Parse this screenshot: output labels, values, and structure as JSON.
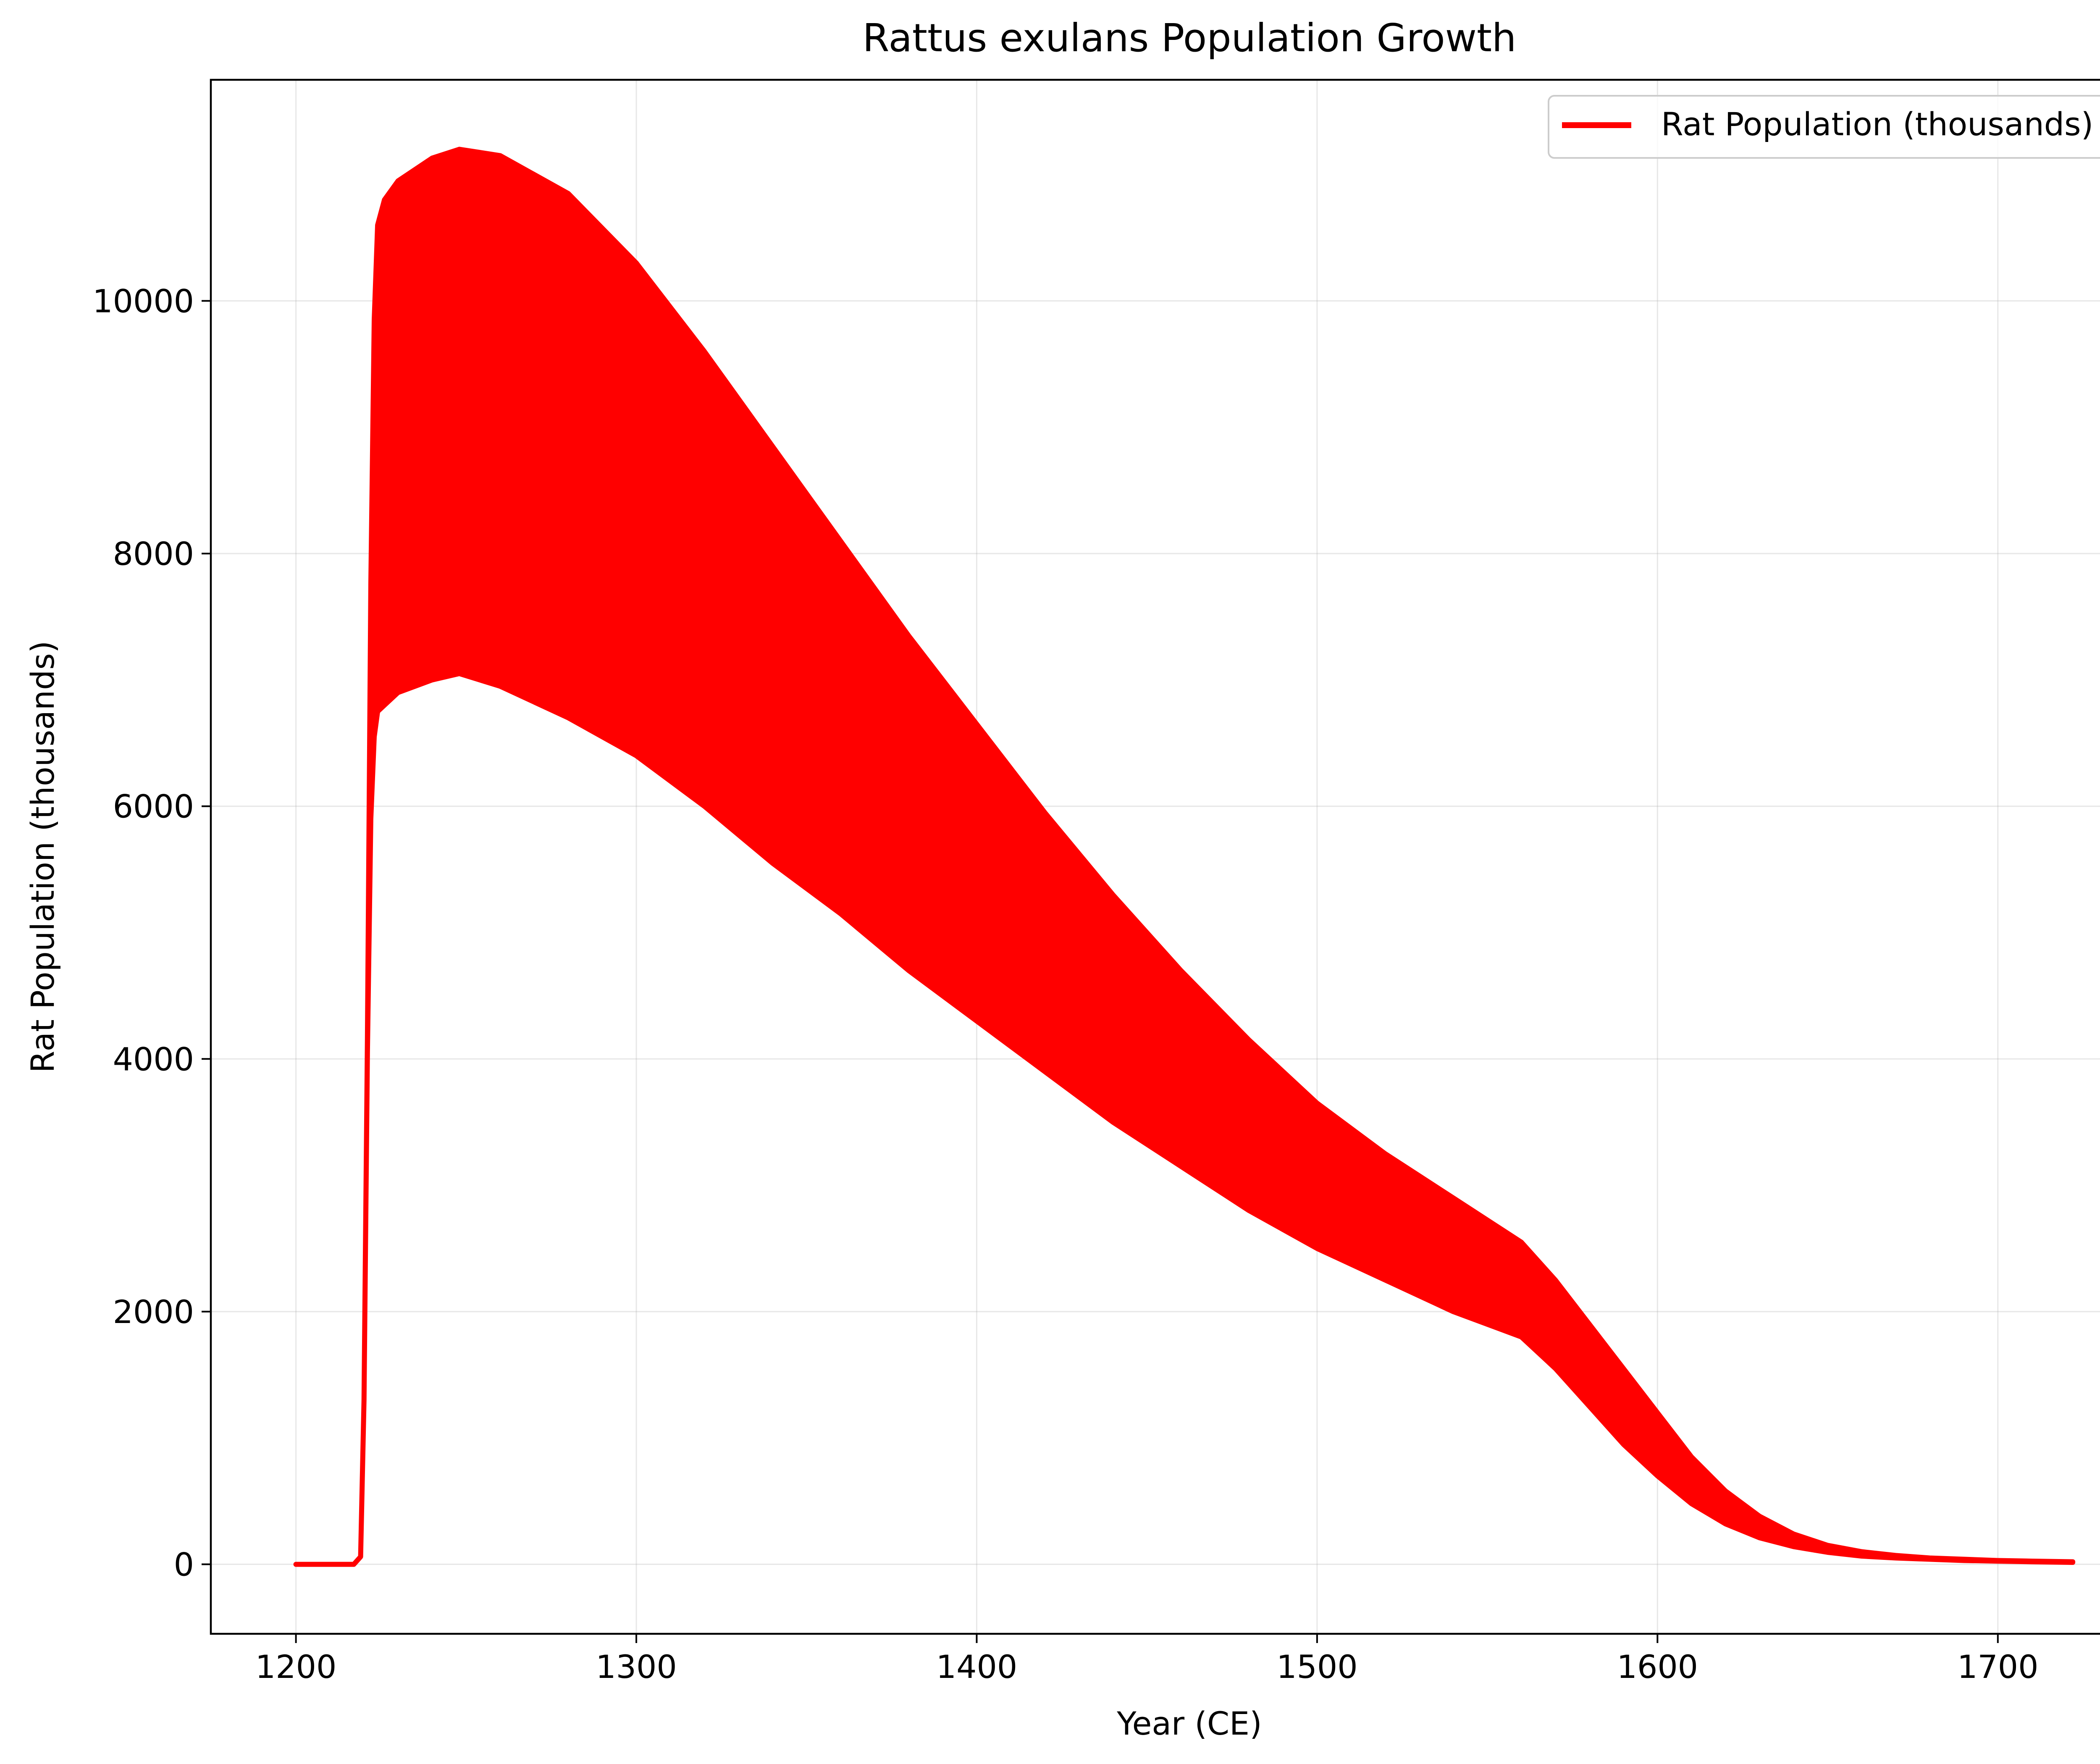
{
  "colors": {
    "series": "#ff0000",
    "grid": "#b0b0b0",
    "axis": "#000000",
    "background": "#ffffff"
  },
  "chart_data": {
    "type": "line",
    "title": "Rattus exulans Population Growth",
    "xlabel": "Year (CE)",
    "ylabel": "Rat Population (thousands)",
    "xlim": [
      1175,
      1750
    ],
    "ylim": [
      -550,
      11750
    ],
    "xticks": [
      1200,
      1300,
      1400,
      1500,
      1600,
      1700
    ],
    "yticks": [
      0,
      2000,
      4000,
      6000,
      8000,
      10000
    ],
    "grid": true,
    "legend": {
      "location": "upper right",
      "entries": [
        "Rat Population (thousands)"
      ]
    },
    "series": [
      {
        "name": "Rat Population (thousands)",
        "color": "#ff0000",
        "description_of_shape": "rapid oscillation between an upper and lower envelope",
        "upper_envelope": {
          "x": [
            1200,
            1217,
            1219,
            1220,
            1221,
            1222,
            1223,
            1224,
            1226,
            1230,
            1240,
            1248,
            1260,
            1280,
            1300,
            1320,
            1340,
            1360,
            1380,
            1400,
            1420,
            1440,
            1460,
            1480,
            1500,
            1520,
            1540,
            1560,
            1570,
            1580,
            1590,
            1600,
            1610,
            1620,
            1630,
            1640,
            1650,
            1660,
            1670,
            1680,
            1690,
            1700,
            1710,
            1722
          ],
          "y": [
            0,
            0,
            60,
            1300,
            4150,
            7750,
            9850,
            10600,
            10800,
            10950,
            11130,
            11200,
            11150,
            10850,
            10300,
            9600,
            8850,
            8100,
            7350,
            6650,
            5950,
            5300,
            4700,
            4150,
            3650,
            3250,
            2900,
            2550,
            2250,
            1900,
            1550,
            1200,
            850,
            580,
            380,
            240,
            150,
            100,
            70,
            50,
            40,
            30,
            25,
            20
          ]
        },
        "lower_envelope": {
          "x": [
            1200,
            1217,
            1219,
            1220,
            1221,
            1222,
            1223,
            1224,
            1226,
            1230,
            1240,
            1248,
            1260,
            1280,
            1300,
            1320,
            1340,
            1360,
            1380,
            1400,
            1420,
            1440,
            1460,
            1480,
            1500,
            1520,
            1540,
            1560,
            1570,
            1580,
            1590,
            1600,
            1610,
            1620,
            1630,
            1640,
            1650,
            1660,
            1670,
            1680,
            1690,
            1700,
            1710,
            1722
          ],
          "y": [
            0,
            0,
            60,
            1300,
            4050,
            5900,
            6550,
            6750,
            6800,
            6900,
            7000,
            7050,
            6950,
            6700,
            6400,
            6000,
            5550,
            5150,
            4700,
            4300,
            3900,
            3500,
            3150,
            2800,
            2500,
            2250,
            2000,
            1800,
            1550,
            1250,
            950,
            700,
            480,
            320,
            210,
            140,
            95,
            65,
            50,
            40,
            30,
            25,
            20,
            15
          ]
        }
      }
    ]
  }
}
